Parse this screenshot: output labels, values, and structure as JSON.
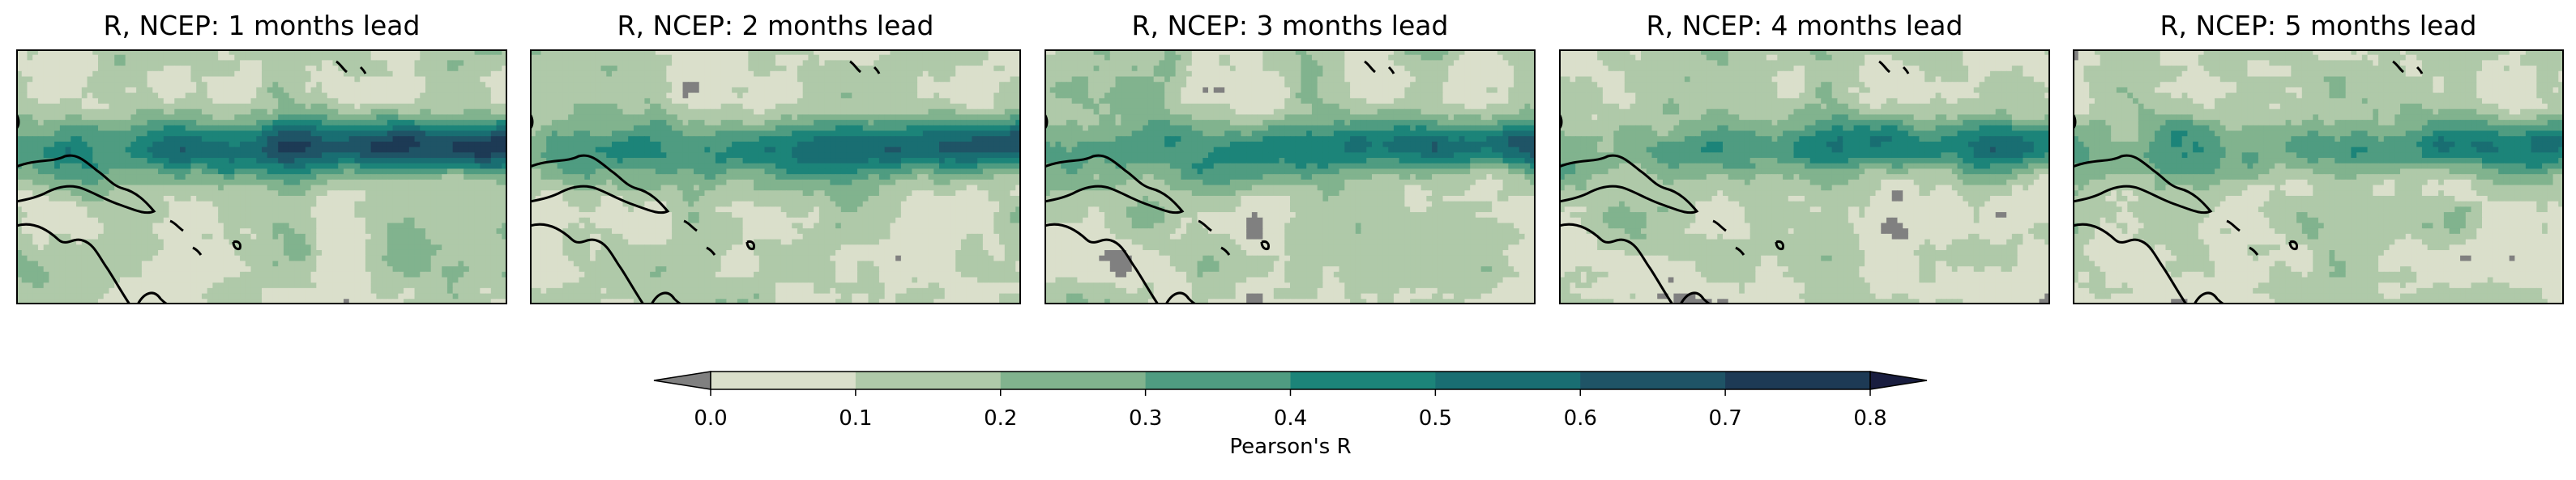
{
  "panels": [
    {
      "title": "R, NCEP: 1 months lead",
      "lead_months": 1,
      "strength": 1.0
    },
    {
      "title": "R, NCEP: 2 months lead",
      "lead_months": 2,
      "strength": 0.86
    },
    {
      "title": "R, NCEP: 3 months lead",
      "lead_months": 3,
      "strength": 0.74
    },
    {
      "title": "R, NCEP: 4 months lead",
      "lead_months": 4,
      "strength": 0.66
    },
    {
      "title": "R, NCEP: 5 months lead",
      "lead_months": 5,
      "strength": 0.6
    }
  ],
  "colorbar": {
    "label": "Pearson's R",
    "ticks": [
      "0.0",
      "0.1",
      "0.2",
      "0.3",
      "0.4",
      "0.5",
      "0.6",
      "0.7",
      "0.8"
    ],
    "levels": [
      0.0,
      0.1,
      0.2,
      0.3,
      0.4,
      0.5,
      0.6,
      0.7,
      0.8
    ],
    "colors": [
      "#dadfcb",
      "#afc9a9",
      "#81b38e",
      "#4f9c81",
      "#1c8479",
      "#196e72",
      "#1f5466",
      "#1d3a55"
    ],
    "under_color": "#808080",
    "over_color": "#191d3f",
    "extend": "both"
  }
}
